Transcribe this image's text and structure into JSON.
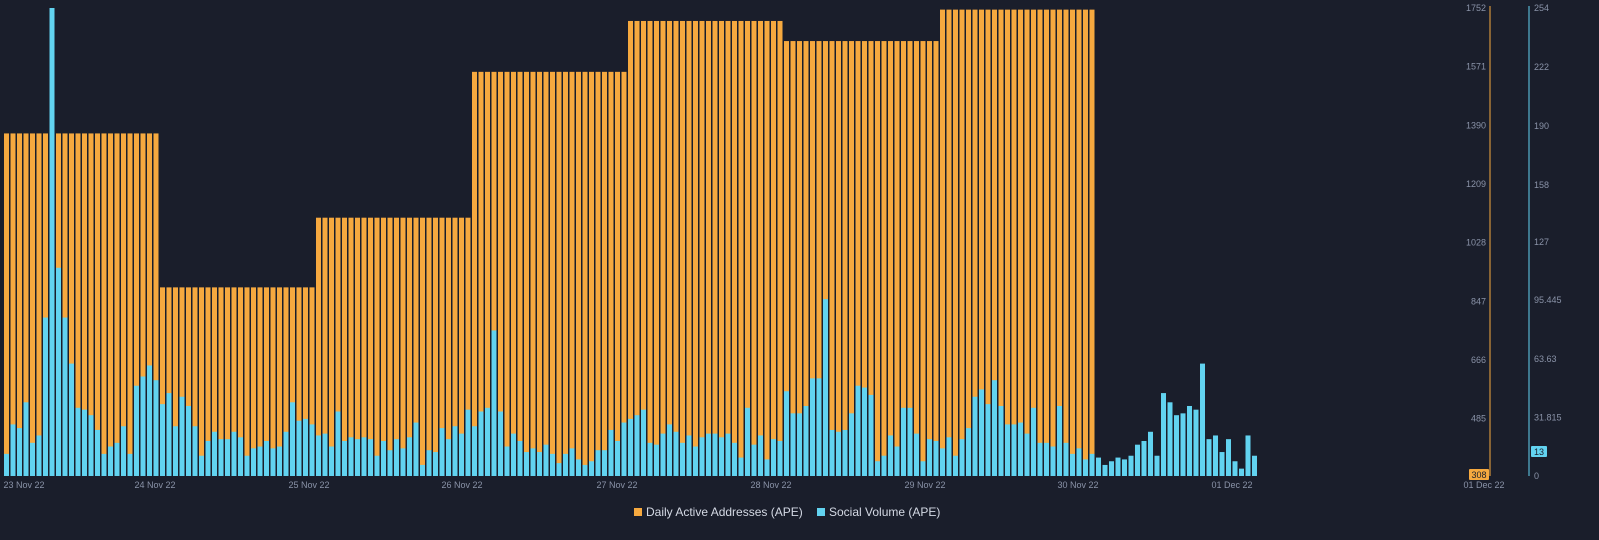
{
  "legend": {
    "series1_label": "Daily Active Addresses (APE)",
    "series2_label": "Social Volume (APE)"
  },
  "badges": {
    "left_axis_current": "308",
    "right_axis_current": "13"
  },
  "colors": {
    "background": "#1a1e2b",
    "daily_active_addresses": "#f6a93f",
    "social_volume": "#62d3f0",
    "axis_text": "#8a93a8",
    "badge_text": "#1a1e2b"
  },
  "chart_data": {
    "type": "bar",
    "x_ticks": [
      "23 Nov 22",
      "24 Nov 22",
      "25 Nov 22",
      "26 Nov 22",
      "27 Nov 22",
      "28 Nov 22",
      "29 Nov 22",
      "30 Nov 22",
      "01 Dec 22",
      "01 Dec 22"
    ],
    "y_left": {
      "ticks": [
        "1752",
        "1571",
        "1390",
        "1209",
        "1028",
        "847",
        "666",
        "485"
      ],
      "range": [
        308,
        1752
      ]
    },
    "y_right": {
      "ticks": [
        "254",
        "222",
        "190",
        "158",
        "127",
        "95.445",
        "63.63",
        "31.815",
        "0"
      ],
      "range": [
        0,
        254
      ]
    },
    "interval": "hourly",
    "grid": false,
    "legend_position": "bottom-center",
    "series": [
      {
        "name": "Daily Active Addresses (APE)",
        "axis": "left",
        "daily_values": [
          {
            "date": "23 Nov 22",
            "value": 1365,
            "hours": 24
          },
          {
            "date": "24 Nov 22",
            "value": 890,
            "hours": 24
          },
          {
            "date": "25 Nov 22",
            "value": 1105,
            "hours": 24
          },
          {
            "date": "26 Nov 22",
            "value": 1555,
            "hours": 24
          },
          {
            "date": "27 Nov 22",
            "value": 1712,
            "hours": 24
          },
          {
            "date": "28 Nov 22",
            "value": 1650,
            "hours": 24
          },
          {
            "date": "29 Nov 22",
            "value": 1747,
            "hours": 24
          }
        ]
      },
      {
        "name": "Social Volume (APE)",
        "axis": "right",
        "values": [
          12,
          28,
          26,
          40,
          18,
          22,
          86,
          254,
          113,
          86,
          61,
          37,
          36,
          33,
          25,
          12,
          16,
          18,
          27,
          12,
          49,
          54,
          60,
          52,
          39,
          45,
          27,
          43,
          38,
          27,
          11,
          19,
          24,
          20,
          20,
          24,
          21,
          11,
          15,
          16,
          19,
          15,
          16,
          24,
          40,
          30,
          31,
          28,
          22,
          23,
          16,
          35,
          19,
          21,
          20,
          21,
          20,
          11,
          19,
          14,
          20,
          15,
          21,
          29,
          6,
          14,
          13,
          26,
          20,
          27,
          23,
          36,
          27,
          35,
          37,
          79,
          35,
          16,
          23,
          19,
          13,
          15,
          13,
          17,
          12,
          7,
          12,
          15,
          9,
          6,
          8,
          14,
          14,
          25,
          19,
          29,
          31,
          33,
          36,
          18,
          17,
          23,
          28,
          24,
          18,
          22,
          16,
          21,
          23,
          23,
          21,
          23,
          18,
          10,
          37,
          17,
          22,
          9,
          20,
          19,
          46,
          34,
          34,
          38,
          53,
          53,
          96,
          25,
          24,
          25,
          34,
          49,
          48,
          44,
          8,
          11,
          22,
          16,
          37,
          37,
          23,
          8,
          20,
          19,
          15,
          21,
          11,
          20,
          26,
          43,
          47,
          39,
          52,
          38,
          28,
          28,
          29,
          23,
          37,
          18,
          18,
          16,
          38,
          18,
          12,
          15,
          9,
          12,
          10,
          6,
          8,
          10,
          9,
          11,
          17,
          19,
          24,
          11,
          45,
          40,
          33,
          34,
          38,
          36,
          61,
          20,
          22,
          13,
          20,
          8,
          4,
          22,
          11
        ]
      }
    ]
  }
}
